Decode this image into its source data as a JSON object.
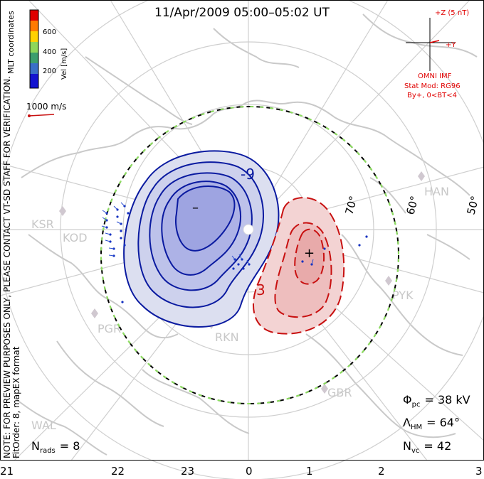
{
  "title": "11/Apr/2009 05:00–05:02 UT",
  "color_bar": {
    "label": "Vel [m/s]",
    "ticks": [
      "600",
      "400",
      "200"
    ],
    "colors": [
      "#e00000",
      "#ff7a00",
      "#ffd200",
      "#8ed65a",
      "#3c9e6e",
      "#3a6fc8",
      "#1414d0"
    ]
  },
  "coordinates_label": "MLT coordinates",
  "vector_scale_label": "1000 m/s",
  "preview_note": "NOTE: FOR PREVIEW PURPOSES ONLY, PLEASE CONTACT VT-SD STAFF FOR VERIFICATION.",
  "fit_note": "FitOrder: 8, mapEX format",
  "imf": {
    "z_label": "+Z (5 nT)",
    "y_label": "+Y",
    "model_title": "OMNI IMF",
    "stat_mod": "Stat Mod: RG96",
    "condition": "By+, 0<BT<4"
  },
  "sites": [
    "KSR",
    "KOD",
    "PGR",
    "RKN",
    "HAN",
    "PYK",
    "GBR",
    "WAL"
  ],
  "latitude_labels": [
    "70°",
    "60°",
    "50°"
  ],
  "mlt_labels": [
    "21",
    "22",
    "23",
    "0",
    "1",
    "2",
    "3"
  ],
  "contours": {
    "negative_cell_label": "-9",
    "positive_cell_label": "3",
    "negative_center_symbol": "–",
    "positive_center_symbol": "+",
    "negative_color": "#0a1aa0",
    "positive_color": "#c81010"
  },
  "stats": {
    "phi_pc_label": "Φ",
    "phi_pc_sub": "pc",
    "phi_pc_value": "= 38 kV",
    "lambda_label": "Λ",
    "lambda_sub": "HM",
    "lambda_value": "= 64°",
    "nvc_label": "N",
    "nvc_sub": "vc",
    "nvc_value": "= 42",
    "nrads_label": "N",
    "nrads_sub": "rads",
    "nrads_value": "= 8"
  }
}
